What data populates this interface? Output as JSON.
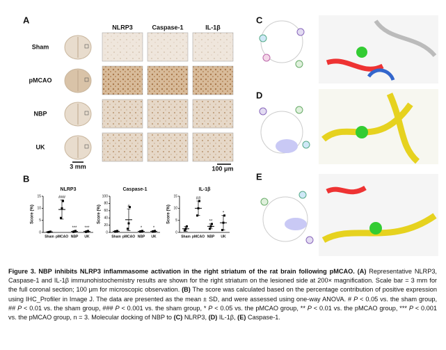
{
  "panel_a": {
    "label": "A",
    "columns": [
      "NLRP3",
      "Caspase-1",
      "IL-1β"
    ],
    "rows": [
      "Sham",
      "pMCAO",
      "NBP",
      "UK"
    ],
    "scale_brain": "3 mm",
    "scale_micro": "100 μm"
  },
  "panel_b": {
    "label": "B"
  },
  "panel_c": {
    "label": "C"
  },
  "panel_d": {
    "label": "D"
  },
  "panel_e": {
    "label": "E"
  },
  "chart_data": [
    {
      "type": "scatter",
      "title": "NLRP3",
      "y_label": "Score (%)",
      "categories": [
        "Sham",
        "pMCAO",
        "NBP",
        "UK"
      ],
      "values": [
        0.2,
        9.5,
        0.4,
        0.4
      ],
      "errors": [
        0.2,
        4,
        0.3,
        0.3
      ],
      "points": [
        [
          0.1,
          0.2,
          0.3
        ],
        [
          6,
          10,
          13
        ],
        [
          0.2,
          0.4,
          0.6
        ],
        [
          0.2,
          0.4,
          0.6
        ]
      ],
      "annotations": [
        null,
        "###",
        "***",
        "***"
      ],
      "ylim": [
        0,
        15
      ],
      "yticks": [
        0,
        5,
        10,
        15
      ]
    },
    {
      "type": "scatter",
      "title": "Caspase-1",
      "y_label": "Score (%)",
      "categories": [
        "Sham",
        "pMCAO",
        "NBP",
        "UK"
      ],
      "values": [
        3,
        35,
        3,
        3
      ],
      "errors": [
        2,
        30,
        2,
        2
      ],
      "points": [
        [
          2,
          3,
          4
        ],
        [
          10,
          25,
          70
        ],
        [
          2,
          3,
          4
        ],
        [
          2,
          3,
          4
        ]
      ],
      "annotations": [
        null,
        "#",
        "*",
        "*"
      ],
      "ylim": [
        0,
        100
      ],
      "yticks": [
        0,
        20,
        40,
        60,
        80,
        100
      ]
    },
    {
      "type": "scatter",
      "title": "IL-1β",
      "y_label": "Score (%)",
      "categories": [
        "Sham",
        "pMCAO",
        "NBP",
        "UK"
      ],
      "values": [
        1.5,
        10,
        2.5,
        4
      ],
      "errors": [
        1,
        3,
        1,
        3
      ],
      "points": [
        [
          0.8,
          1.5,
          2.5
        ],
        [
          7,
          10,
          13
        ],
        [
          1.5,
          2.5,
          3.5
        ],
        [
          1,
          4,
          7
        ]
      ],
      "annotations": [
        null,
        "##",
        "**",
        "*"
      ],
      "ylim": [
        0,
        15
      ],
      "yticks": [
        0,
        5,
        10,
        15
      ]
    }
  ],
  "caption": [
    {
      "text": "Figure 3. NBP inhibits NLRP3 inflammasome activation in the right striatum of the rat brain following pMCAO. (A)",
      "bold": true
    },
    {
      "text": " Representative NLRP3, Caspase-1 and IL-1β immunohistochemistry results are shown for the right striatum on the lesioned side at 200× magnification. Scale bar = 3 mm for the full coronal section; 100 μm for microscopic observation. "
    },
    {
      "text": "(B)",
      "bold": true
    },
    {
      "text": " The score was calculated based on the percentage contribution of positive expression using IHC_Profiler in Image J. The data are presented as the mean ± SD, and were assessed using one-way ANOVA. # "
    },
    {
      "text": "P",
      "italic": true
    },
    {
      "text": " < 0.05 vs. the sham group, ## "
    },
    {
      "text": "P",
      "italic": true
    },
    {
      "text": " < 0.01 vs. the sham group, ### "
    },
    {
      "text": "P",
      "italic": true
    },
    {
      "text": " < 0.001 vs. the sham group, * "
    },
    {
      "text": "P",
      "italic": true
    },
    {
      "text": " < 0.05 vs. the pMCAO group, ** "
    },
    {
      "text": "P",
      "italic": true
    },
    {
      "text": " < 0.01 vs. the pMCAO group, *** "
    },
    {
      "text": "P",
      "italic": true
    },
    {
      "text": " < 0.001 vs. the pMCAO group, n = 3. Molecular docking of NBP to "
    },
    {
      "text": "(C)",
      "bold": true
    },
    {
      "text": " NLRP3, "
    },
    {
      "text": "(D)",
      "bold": true
    },
    {
      "text": " IL-1β, "
    },
    {
      "text": "(E)",
      "bold": true
    },
    {
      "text": " Caspase-1."
    }
  ]
}
